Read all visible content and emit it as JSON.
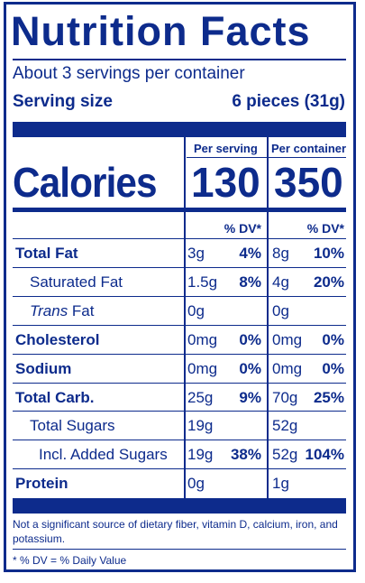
{
  "title": "Nutrition Facts",
  "servings_per_container": "About 3 servings per container",
  "serving_size_label": "Serving size",
  "serving_size_value": "6 pieces (31g)",
  "columns": {
    "per_serving": "Per serving",
    "per_container": "Per container"
  },
  "calories": {
    "label": "Calories",
    "per_serving": "130",
    "per_container": "350"
  },
  "dv_header": "% DV*",
  "nutrients": [
    {
      "name": "Total Fat",
      "bold": true,
      "indent": 0,
      "s_amt": "3g",
      "s_dv": "4%",
      "c_amt": "8g",
      "c_dv": "10%"
    },
    {
      "name": "Saturated Fat",
      "bold": false,
      "indent": 1,
      "s_amt": "1.5g",
      "s_dv": "8%",
      "c_amt": "4g",
      "c_dv": "20%"
    },
    {
      "name_italic": "Trans",
      "name": " Fat",
      "bold": false,
      "indent": 1,
      "s_amt": "0g",
      "s_dv": "",
      "c_amt": "0g",
      "c_dv": ""
    },
    {
      "name": "Cholesterol",
      "bold": true,
      "indent": 0,
      "s_amt": "0mg",
      "s_dv": "0%",
      "c_amt": "0mg",
      "c_dv": "0%"
    },
    {
      "name": "Sodium",
      "bold": true,
      "indent": 0,
      "s_amt": "0mg",
      "s_dv": "0%",
      "c_amt": "0mg",
      "c_dv": "0%"
    },
    {
      "name": "Total Carb.",
      "bold": true,
      "indent": 0,
      "s_amt": "25g",
      "s_dv": "9%",
      "c_amt": "70g",
      "c_dv": "25%"
    },
    {
      "name": "Total Sugars",
      "bold": false,
      "indent": 1,
      "s_amt": "19g",
      "s_dv": "",
      "c_amt": "52g",
      "c_dv": ""
    },
    {
      "name": "Incl. Added Sugars",
      "bold": false,
      "indent": 2,
      "s_amt": "19g",
      "s_dv": "38%",
      "c_amt": "52g",
      "c_dv": "104%"
    },
    {
      "name": "Protein",
      "bold": true,
      "indent": 0,
      "s_amt": "0g",
      "s_dv": "",
      "c_amt": "1g",
      "c_dv": ""
    }
  ],
  "footnote": "Not a significant source of dietary fiber, vitamin D, calcium, iron, and potassium.",
  "dv_note": "* % DV = % Daily Value",
  "colors": {
    "ink": "#0d2b8c",
    "background": "#ffffff"
  }
}
